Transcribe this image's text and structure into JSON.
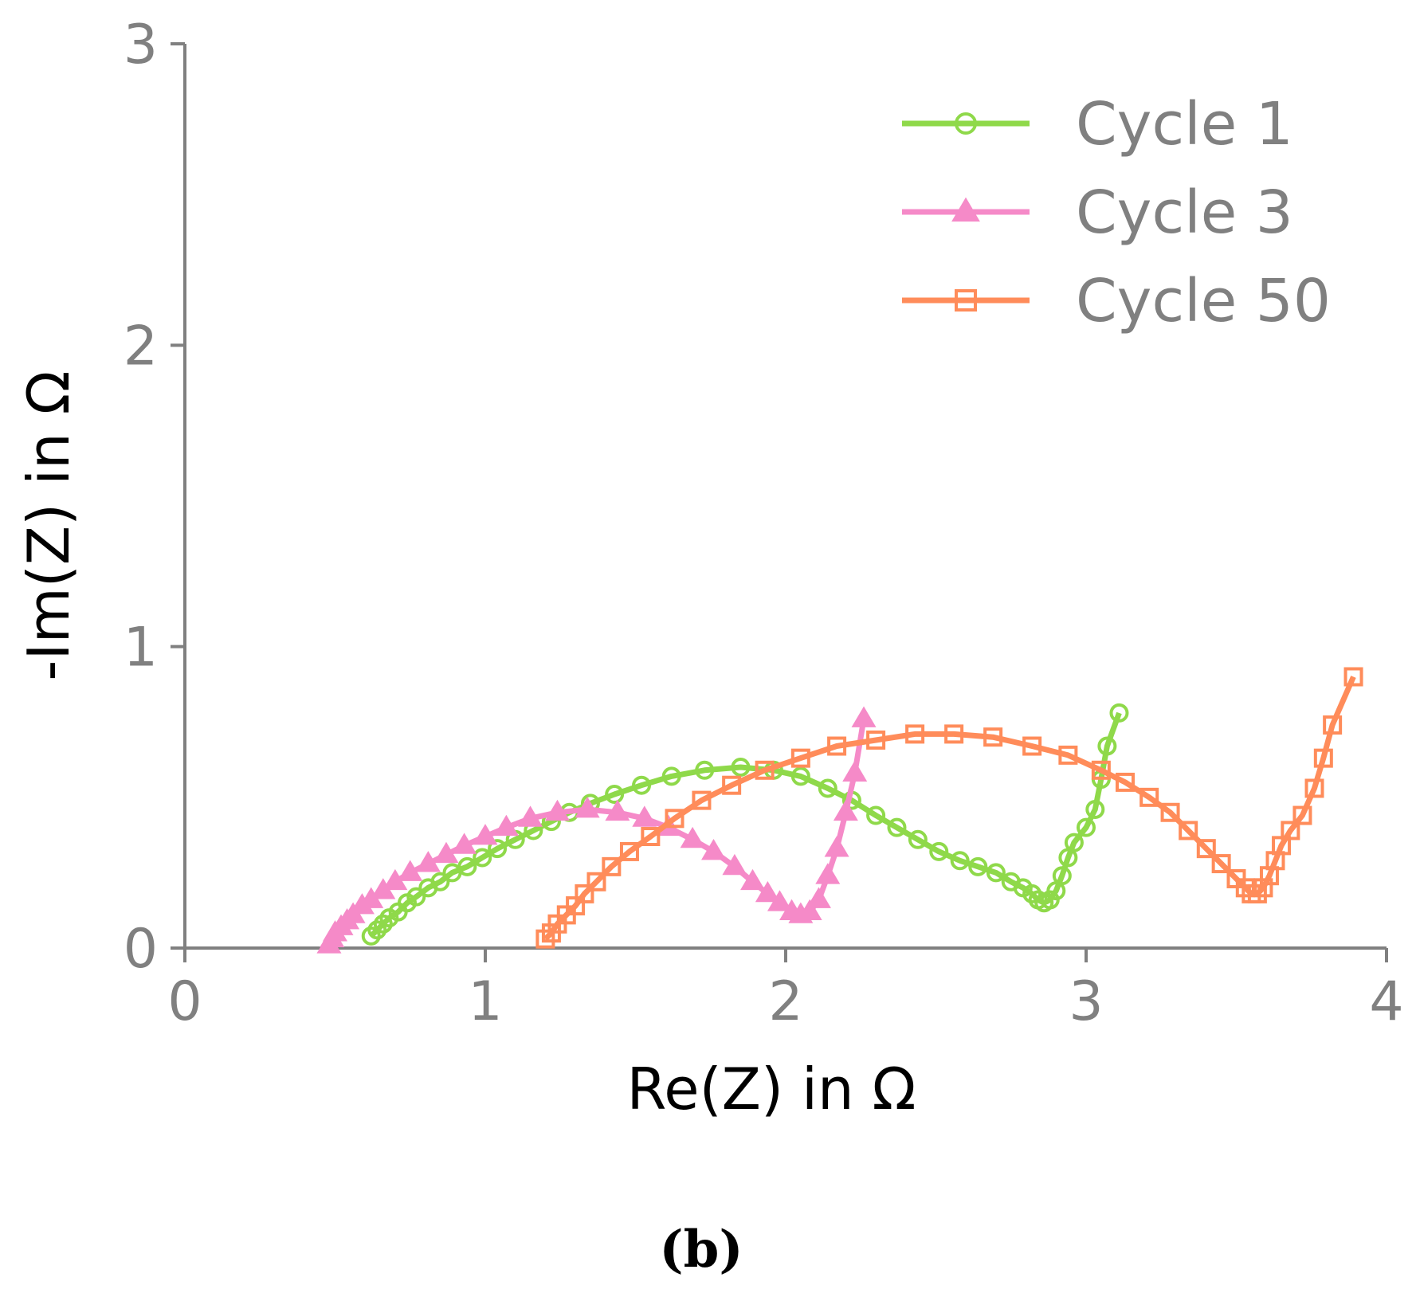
{
  "chart_data": {
    "type": "line",
    "title": "",
    "xlabel": "Re(Z) in Ω",
    "ylabel": "-Im(Z) in Ω",
    "xlim": [
      0,
      4
    ],
    "ylim": [
      0,
      3
    ],
    "x_ticks": [
      "0",
      "1",
      "2",
      "3",
      "4"
    ],
    "y_ticks": [
      "0",
      "1",
      "2",
      "3"
    ],
    "grid": false,
    "legend_position": "top-right",
    "panel_label": "(b)",
    "series": [
      {
        "name": "Cycle 1",
        "color": "#8fd94a",
        "marker": "circle",
        "points": [
          [
            0.62,
            0.04
          ],
          [
            0.64,
            0.06
          ],
          [
            0.66,
            0.08
          ],
          [
            0.68,
            0.1
          ],
          [
            0.71,
            0.12
          ],
          [
            0.74,
            0.15
          ],
          [
            0.77,
            0.17
          ],
          [
            0.81,
            0.2
          ],
          [
            0.85,
            0.22
          ],
          [
            0.89,
            0.25
          ],
          [
            0.94,
            0.27
          ],
          [
            0.99,
            0.3
          ],
          [
            1.04,
            0.33
          ],
          [
            1.1,
            0.36
          ],
          [
            1.16,
            0.39
          ],
          [
            1.22,
            0.42
          ],
          [
            1.28,
            0.45
          ],
          [
            1.35,
            0.48
          ],
          [
            1.43,
            0.51
          ],
          [
            1.52,
            0.54
          ],
          [
            1.62,
            0.57
          ],
          [
            1.73,
            0.59
          ],
          [
            1.85,
            0.6
          ],
          [
            1.96,
            0.59
          ],
          [
            2.05,
            0.57
          ],
          [
            2.14,
            0.53
          ],
          [
            2.22,
            0.49
          ],
          [
            2.3,
            0.44
          ],
          [
            2.37,
            0.4
          ],
          [
            2.44,
            0.36
          ],
          [
            2.51,
            0.32
          ],
          [
            2.58,
            0.29
          ],
          [
            2.64,
            0.27
          ],
          [
            2.7,
            0.25
          ],
          [
            2.75,
            0.22
          ],
          [
            2.79,
            0.2
          ],
          [
            2.82,
            0.18
          ],
          [
            2.84,
            0.16
          ],
          [
            2.86,
            0.15
          ],
          [
            2.88,
            0.16
          ],
          [
            2.9,
            0.19
          ],
          [
            2.92,
            0.24
          ],
          [
            2.94,
            0.3
          ],
          [
            2.96,
            0.35
          ],
          [
            3.0,
            0.4
          ],
          [
            3.03,
            0.46
          ],
          [
            3.05,
            0.56
          ],
          [
            3.07,
            0.67
          ],
          [
            3.11,
            0.78
          ]
        ]
      },
      {
        "name": "Cycle 3",
        "color": "#f58ac8",
        "marker": "triangle",
        "points": [
          [
            0.48,
            0.01
          ],
          [
            0.49,
            0.03
          ],
          [
            0.5,
            0.05
          ],
          [
            0.52,
            0.07
          ],
          [
            0.54,
            0.09
          ],
          [
            0.56,
            0.11
          ],
          [
            0.59,
            0.14
          ],
          [
            0.62,
            0.16
          ],
          [
            0.66,
            0.19
          ],
          [
            0.7,
            0.22
          ],
          [
            0.75,
            0.25
          ],
          [
            0.81,
            0.28
          ],
          [
            0.87,
            0.31
          ],
          [
            0.93,
            0.34
          ],
          [
            1.0,
            0.37
          ],
          [
            1.07,
            0.4
          ],
          [
            1.15,
            0.43
          ],
          [
            1.24,
            0.45
          ],
          [
            1.34,
            0.46
          ],
          [
            1.44,
            0.45
          ],
          [
            1.53,
            0.43
          ],
          [
            1.61,
            0.4
          ],
          [
            1.69,
            0.36
          ],
          [
            1.76,
            0.32
          ],
          [
            1.83,
            0.27
          ],
          [
            1.89,
            0.22
          ],
          [
            1.94,
            0.18
          ],
          [
            1.98,
            0.15
          ],
          [
            2.02,
            0.12
          ],
          [
            2.05,
            0.11
          ],
          [
            2.08,
            0.12
          ],
          [
            2.11,
            0.16
          ],
          [
            2.14,
            0.24
          ],
          [
            2.17,
            0.33
          ],
          [
            2.2,
            0.45
          ],
          [
            2.23,
            0.58
          ],
          [
            2.26,
            0.76
          ]
        ]
      },
      {
        "name": "Cycle 50",
        "color": "#ff8c5a",
        "marker": "square",
        "points": [
          [
            1.2,
            0.03
          ],
          [
            1.22,
            0.05
          ],
          [
            1.24,
            0.08
          ],
          [
            1.27,
            0.11
          ],
          [
            1.3,
            0.14
          ],
          [
            1.33,
            0.18
          ],
          [
            1.37,
            0.22
          ],
          [
            1.42,
            0.27
          ],
          [
            1.48,
            0.32
          ],
          [
            1.55,
            0.37
          ],
          [
            1.63,
            0.43
          ],
          [
            1.72,
            0.49
          ],
          [
            1.82,
            0.54
          ],
          [
            1.93,
            0.59
          ],
          [
            2.05,
            0.63
          ],
          [
            2.17,
            0.67
          ],
          [
            2.3,
            0.69
          ],
          [
            2.43,
            0.71
          ],
          [
            2.56,
            0.71
          ],
          [
            2.69,
            0.7
          ],
          [
            2.82,
            0.67
          ],
          [
            2.94,
            0.64
          ],
          [
            3.05,
            0.59
          ],
          [
            3.13,
            0.55
          ],
          [
            3.21,
            0.5
          ],
          [
            3.28,
            0.45
          ],
          [
            3.34,
            0.39
          ],
          [
            3.4,
            0.33
          ],
          [
            3.45,
            0.28
          ],
          [
            3.5,
            0.23
          ],
          [
            3.53,
            0.2
          ],
          [
            3.55,
            0.18
          ],
          [
            3.57,
            0.18
          ],
          [
            3.59,
            0.2
          ],
          [
            3.61,
            0.24
          ],
          [
            3.63,
            0.29
          ],
          [
            3.65,
            0.34
          ],
          [
            3.68,
            0.39
          ],
          [
            3.72,
            0.44
          ],
          [
            3.76,
            0.53
          ],
          [
            3.79,
            0.63
          ],
          [
            3.82,
            0.74
          ],
          [
            3.89,
            0.9
          ]
        ]
      }
    ]
  }
}
